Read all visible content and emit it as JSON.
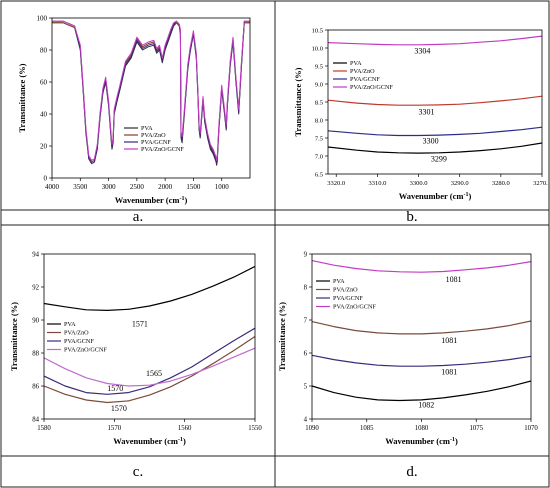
{
  "captions": [
    "a.",
    "b.",
    "c.",
    "d."
  ],
  "chart_data": [
    {
      "type": "line",
      "xlabel": "Wavenumber (cm",
      "xlabel_sup": "-1",
      "xlabel_tail": ")",
      "ylabel": "Transmittance (%)",
      "xlim": [
        4000,
        500
      ],
      "ylim": [
        0,
        100
      ],
      "xticks": [
        4000,
        3500,
        3000,
        2500,
        2000,
        1500,
        1000
      ],
      "yticks": [
        0,
        20,
        40,
        60,
        80,
        100
      ],
      "grid": false,
      "legend": "bottom-center",
      "series": [
        {
          "name": "PVA",
          "color": "#2b2b2b",
          "x": [
            4000,
            3800,
            3600,
            3500,
            3450,
            3400,
            3350,
            3300,
            3250,
            3200,
            3150,
            3100,
            3050,
            3000,
            2950,
            2940,
            2920,
            2900,
            2850,
            2800,
            2700,
            2600,
            2500,
            2400,
            2300,
            2200,
            2150,
            2100,
            2050,
            2000,
            1950,
            1900,
            1850,
            1800,
            1750,
            1730,
            1720,
            1700,
            1660,
            1600,
            1560,
            1500,
            1450,
            1420,
            1400,
            1380,
            1330,
            1300,
            1250,
            1200,
            1150,
            1100,
            1090,
            1080,
            1050,
            1000,
            950,
            920,
            900,
            850,
            800,
            750,
            700,
            650,
            600,
            550,
            500
          ],
          "y": [
            97,
            97,
            94,
            80,
            55,
            28,
            12,
            9,
            10,
            18,
            38,
            53,
            60,
            45,
            22,
            18,
            22,
            40,
            48,
            55,
            70,
            75,
            85,
            80,
            82,
            83,
            78,
            80,
            72,
            80,
            85,
            90,
            95,
            97,
            95,
            90,
            25,
            22,
            40,
            68,
            78,
            90,
            75,
            50,
            30,
            25,
            48,
            35,
            25,
            18,
            15,
            10,
            8,
            10,
            30,
            55,
            40,
            30,
            45,
            70,
            85,
            60,
            40,
            70,
            97,
            97,
            97
          ]
        },
        {
          "name": "PVA/ZnO",
          "color": "#8b3a2a",
          "x": [
            4000,
            3800,
            3600,
            3500,
            3450,
            3400,
            3350,
            3300,
            3250,
            3200,
            3150,
            3100,
            3050,
            3000,
            2950,
            2940,
            2920,
            2900,
            2850,
            2800,
            2700,
            2600,
            2500,
            2400,
            2300,
            2200,
            2150,
            2100,
            2050,
            2000,
            1950,
            1900,
            1850,
            1800,
            1750,
            1730,
            1720,
            1700,
            1660,
            1600,
            1560,
            1500,
            1450,
            1420,
            1400,
            1380,
            1330,
            1300,
            1250,
            1200,
            1150,
            1100,
            1090,
            1080,
            1050,
            1000,
            950,
            920,
            900,
            850,
            800,
            750,
            700,
            650,
            600,
            550,
            500
          ],
          "y": [
            97,
            97,
            94,
            82,
            57,
            30,
            13,
            10,
            11,
            20,
            40,
            55,
            62,
            47,
            24,
            20,
            24,
            42,
            50,
            57,
            72,
            77,
            87,
            82,
            84,
            85,
            80,
            82,
            74,
            82,
            87,
            92,
            96,
            97,
            95,
            92,
            28,
            25,
            42,
            70,
            80,
            91,
            77,
            52,
            32,
            27,
            50,
            37,
            27,
            20,
            17,
            12,
            10,
            12,
            32,
            57,
            42,
            32,
            47,
            72,
            87,
            62,
            42,
            72,
            97,
            97,
            97
          ]
        },
        {
          "name": "PVA/GCNF",
          "color": "#3b2a7a",
          "x": [
            4000,
            3800,
            3600,
            3500,
            3450,
            3400,
            3350,
            3300,
            3250,
            3200,
            3150,
            3100,
            3050,
            3000,
            2950,
            2940,
            2920,
            2900,
            2850,
            2800,
            2700,
            2600,
            2500,
            2400,
            2300,
            2200,
            2150,
            2100,
            2050,
            2000,
            1950,
            1900,
            1850,
            1800,
            1750,
            1730,
            1720,
            1700,
            1660,
            1600,
            1560,
            1500,
            1450,
            1420,
            1400,
            1380,
            1330,
            1300,
            1250,
            1200,
            1150,
            1100,
            1090,
            1080,
            1050,
            1000,
            950,
            920,
            900,
            850,
            800,
            750,
            700,
            650,
            600,
            550,
            500
          ],
          "y": [
            98,
            98,
            95,
            81,
            56,
            29,
            12,
            9,
            10,
            19,
            39,
            54,
            61,
            46,
            23,
            19,
            23,
            41,
            49,
            56,
            71,
            76,
            86,
            81,
            83,
            84,
            79,
            81,
            73,
            81,
            86,
            91,
            96,
            98,
            96,
            91,
            26,
            23,
            41,
            69,
            79,
            90,
            76,
            51,
            31,
            26,
            49,
            36,
            26,
            19,
            16,
            11,
            9,
            11,
            31,
            56,
            41,
            31,
            46,
            71,
            86,
            61,
            41,
            71,
            98,
            98,
            98
          ]
        },
        {
          "name": "PVA/ZnO/GCNF",
          "color": "#c23cc2",
          "x": [
            4000,
            3800,
            3600,
            3500,
            3450,
            3400,
            3350,
            3300,
            3250,
            3200,
            3150,
            3100,
            3050,
            3000,
            2950,
            2940,
            2920,
            2900,
            2850,
            2800,
            2700,
            2600,
            2500,
            2400,
            2300,
            2200,
            2150,
            2100,
            2050,
            2000,
            1950,
            1900,
            1850,
            1800,
            1750,
            1730,
            1720,
            1700,
            1660,
            1600,
            1560,
            1500,
            1450,
            1420,
            1400,
            1380,
            1330,
            1300,
            1250,
            1200,
            1150,
            1100,
            1090,
            1080,
            1050,
            1000,
            950,
            920,
            900,
            850,
            800,
            750,
            700,
            650,
            600,
            550,
            500
          ],
          "y": [
            98,
            98,
            95,
            83,
            58,
            31,
            14,
            11,
            12,
            21,
            41,
            56,
            63,
            48,
            25,
            21,
            25,
            43,
            51,
            58,
            73,
            78,
            88,
            83,
            85,
            86,
            81,
            83,
            75,
            83,
            88,
            93,
            97,
            98,
            96,
            93,
            29,
            26,
            43,
            71,
            81,
            92,
            78,
            53,
            33,
            28,
            51,
            38,
            28,
            21,
            18,
            13,
            11,
            13,
            33,
            58,
            43,
            33,
            48,
            73,
            88,
            63,
            43,
            73,
            98,
            98,
            98
          ]
        }
      ]
    },
    {
      "type": "line",
      "xlabel": "Wavenumber (cm",
      "xlabel_sup": "-1",
      "xlabel_tail": ")",
      "ylabel": "Transmittance (%)",
      "xlim": [
        3322,
        3270
      ],
      "ylim": [
        6.5,
        10.5
      ],
      "xticks": [
        3320,
        3310,
        3300,
        3290,
        3280,
        3270
      ],
      "yticks": [
        6.5,
        7.0,
        7.5,
        8.0,
        8.5,
        9.0,
        9.5,
        10.0,
        10.5
      ],
      "grid": false,
      "legend": "top-left",
      "annotations": [
        {
          "text": "3304",
          "x": 3301,
          "y": 9.85
        },
        {
          "text": "3301",
          "x": 3300,
          "y": 8.15
        },
        {
          "text": "3300",
          "x": 3299,
          "y": 7.35
        },
        {
          "text": "3299",
          "x": 3297,
          "y": 6.85
        }
      ],
      "series": [
        {
          "name": "PVA",
          "color": "#000000",
          "x": [
            3322,
            3315,
            3310,
            3305,
            3300,
            3295,
            3290,
            3285,
            3280,
            3275,
            3270
          ],
          "y": [
            7.25,
            7.16,
            7.11,
            7.09,
            7.08,
            7.09,
            7.11,
            7.15,
            7.2,
            7.27,
            7.36
          ]
        },
        {
          "name": "PVA/ZnO",
          "color": "#c0392b",
          "x": [
            3322,
            3315,
            3310,
            3305,
            3300,
            3295,
            3290,
            3285,
            3280,
            3275,
            3270
          ],
          "y": [
            8.55,
            8.47,
            8.43,
            8.41,
            8.41,
            8.42,
            8.44,
            8.48,
            8.53,
            8.59,
            8.66
          ]
        },
        {
          "name": "PVA/GCNF",
          "color": "#2c2c8a",
          "x": [
            3322,
            3315,
            3310,
            3305,
            3300,
            3295,
            3290,
            3285,
            3280,
            3275,
            3270
          ],
          "y": [
            7.7,
            7.63,
            7.59,
            7.57,
            7.57,
            7.58,
            7.6,
            7.63,
            7.68,
            7.73,
            7.8
          ]
        },
        {
          "name": "PVA/ZnO/GCNF",
          "color": "#c23cc2",
          "x": [
            3322,
            3315,
            3310,
            3305,
            3300,
            3295,
            3290,
            3285,
            3280,
            3275,
            3270
          ],
          "y": [
            10.15,
            10.12,
            10.1,
            10.09,
            10.09,
            10.1,
            10.12,
            10.16,
            10.2,
            10.26,
            10.33
          ]
        }
      ]
    },
    {
      "type": "line",
      "xlabel": "Wavenumber (cm",
      "xlabel_sup": "-1",
      "xlabel_tail": ")",
      "ylabel": "Transmittance (%)",
      "xlim": [
        1580,
        1550
      ],
      "ylim": [
        84,
        94
      ],
      "xticks": [
        1580,
        1570,
        1560,
        1550
      ],
      "yticks": [
        84,
        86,
        88,
        90,
        92,
        94
      ],
      "grid": false,
      "legend": "left",
      "annotations": [
        {
          "text": "1571",
          "x": 1567.5,
          "y": 89.6
        },
        {
          "text": "1565",
          "x": 1565.5,
          "y": 86.6
        },
        {
          "text": "1570",
          "x": 1571,
          "y": 85.7
        },
        {
          "text": "1570",
          "x": 1570.5,
          "y": 84.5
        }
      ],
      "series": [
        {
          "name": "PVA",
          "color": "#000000",
          "x": [
            1580,
            1577,
            1574,
            1571,
            1568,
            1565,
            1562,
            1559,
            1556,
            1553,
            1550
          ],
          "y": [
            91.0,
            90.8,
            90.62,
            90.58,
            90.65,
            90.85,
            91.15,
            91.55,
            92.05,
            92.6,
            93.25
          ]
        },
        {
          "name": "PVA/ZnO",
          "color": "#7b4a3a",
          "x": [
            1580,
            1577,
            1574,
            1571,
            1568,
            1565,
            1562,
            1559,
            1556,
            1553,
            1550
          ],
          "y": [
            86.0,
            85.5,
            85.15,
            85.0,
            85.1,
            85.45,
            85.95,
            86.6,
            87.35,
            88.15,
            89.0
          ]
        },
        {
          "name": "PVA/GCNF",
          "color": "#3b2a7a",
          "x": [
            1580,
            1577,
            1574,
            1571,
            1568,
            1565,
            1562,
            1559,
            1556,
            1553,
            1550
          ],
          "y": [
            86.6,
            86.0,
            85.6,
            85.5,
            85.6,
            85.95,
            86.5,
            87.15,
            87.95,
            88.75,
            89.5
          ]
        },
        {
          "name": "PVA/ZnO/GCNF",
          "color": "#c06ad0",
          "x": [
            1580,
            1577,
            1574,
            1571,
            1568,
            1565,
            1562,
            1559,
            1556,
            1553,
            1550
          ],
          "y": [
            87.7,
            87.05,
            86.5,
            86.15,
            86.0,
            86.05,
            86.3,
            86.7,
            87.2,
            87.75,
            88.3
          ]
        }
      ]
    },
    {
      "type": "line",
      "xlabel": "Wavenumber (cm",
      "xlabel_sup": "-1",
      "xlabel_tail": ")",
      "ylabel": "Transmittance (%)",
      "xlim": [
        1090,
        1070
      ],
      "ylim": [
        4,
        9
      ],
      "xticks": [
        1090,
        1085,
        1080,
        1075,
        1070
      ],
      "yticks": [
        4,
        5,
        6,
        7,
        8,
        9
      ],
      "grid": false,
      "legend": "top-left",
      "annotations": [
        {
          "text": "1081",
          "x": 1077.8,
          "y": 8.15
        },
        {
          "text": "1081",
          "x": 1078.2,
          "y": 6.3
        },
        {
          "text": "1081",
          "x": 1078.2,
          "y": 5.35
        },
        {
          "text": "1082",
          "x": 1080.3,
          "y": 4.35
        }
      ],
      "series": [
        {
          "name": "PVA",
          "color": "#000000",
          "x": [
            1090,
            1088,
            1086,
            1084,
            1082,
            1080,
            1078,
            1076,
            1074,
            1072,
            1070
          ],
          "y": [
            5.0,
            4.8,
            4.66,
            4.58,
            4.56,
            4.58,
            4.64,
            4.73,
            4.84,
            4.98,
            5.15
          ]
        },
        {
          "name": "PVA/ZnO",
          "color": "#7b4a3a",
          "x": [
            1090,
            1088,
            1086,
            1084,
            1082,
            1080,
            1078,
            1076,
            1074,
            1072,
            1070
          ],
          "y": [
            6.95,
            6.8,
            6.68,
            6.61,
            6.58,
            6.58,
            6.61,
            6.66,
            6.73,
            6.83,
            6.97
          ]
        },
        {
          "name": "PVA/GCNF",
          "color": "#3b2a7a",
          "x": [
            1090,
            1088,
            1086,
            1084,
            1082,
            1080,
            1078,
            1076,
            1074,
            1072,
            1070
          ],
          "y": [
            5.93,
            5.8,
            5.7,
            5.63,
            5.6,
            5.6,
            5.62,
            5.66,
            5.72,
            5.8,
            5.9
          ]
        },
        {
          "name": "PVA/ZnO/GCNF",
          "color": "#c23cc2",
          "x": [
            1090,
            1088,
            1086,
            1084,
            1082,
            1080,
            1078,
            1076,
            1074,
            1072,
            1070
          ],
          "y": [
            8.8,
            8.66,
            8.56,
            8.49,
            8.46,
            8.45,
            8.47,
            8.52,
            8.58,
            8.66,
            8.77
          ]
        }
      ]
    }
  ]
}
